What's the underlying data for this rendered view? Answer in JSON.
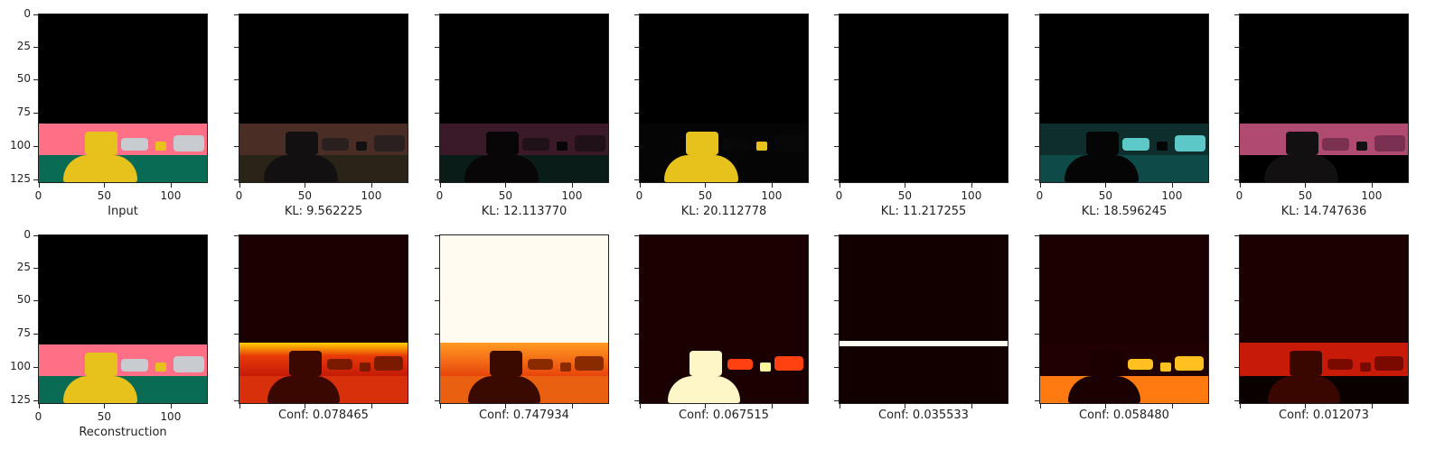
{
  "axis": {
    "y_ticks": [
      "0",
      "25",
      "50",
      "75",
      "100",
      "125"
    ],
    "x_ticks": [
      "0",
      "50",
      "100"
    ]
  },
  "row1": {
    "captions": [
      "Input",
      "KL: 9.562225",
      "KL: 12.113770",
      "KL: 20.112778",
      "KL: 11.217255",
      "KL: 18.596245",
      "KL: 14.747636"
    ]
  },
  "row2": {
    "captions": [
      "Reconstruction",
      "Conf: 0.078465",
      "Conf: 0.747934",
      "Conf: 0.067515",
      "Conf: 0.035533",
      "Conf: 0.058480",
      "Conf: 0.012073"
    ]
  },
  "colors": {
    "pink": "#ff6f86",
    "teal": "#0a6b55",
    "yellow": "#e8c21c",
    "black": "#000000",
    "heat_dark": "#1a0000",
    "heat_red": "#d8200c",
    "heat_orange": "#ff8c10",
    "heat_white": "#fffbf0"
  }
}
